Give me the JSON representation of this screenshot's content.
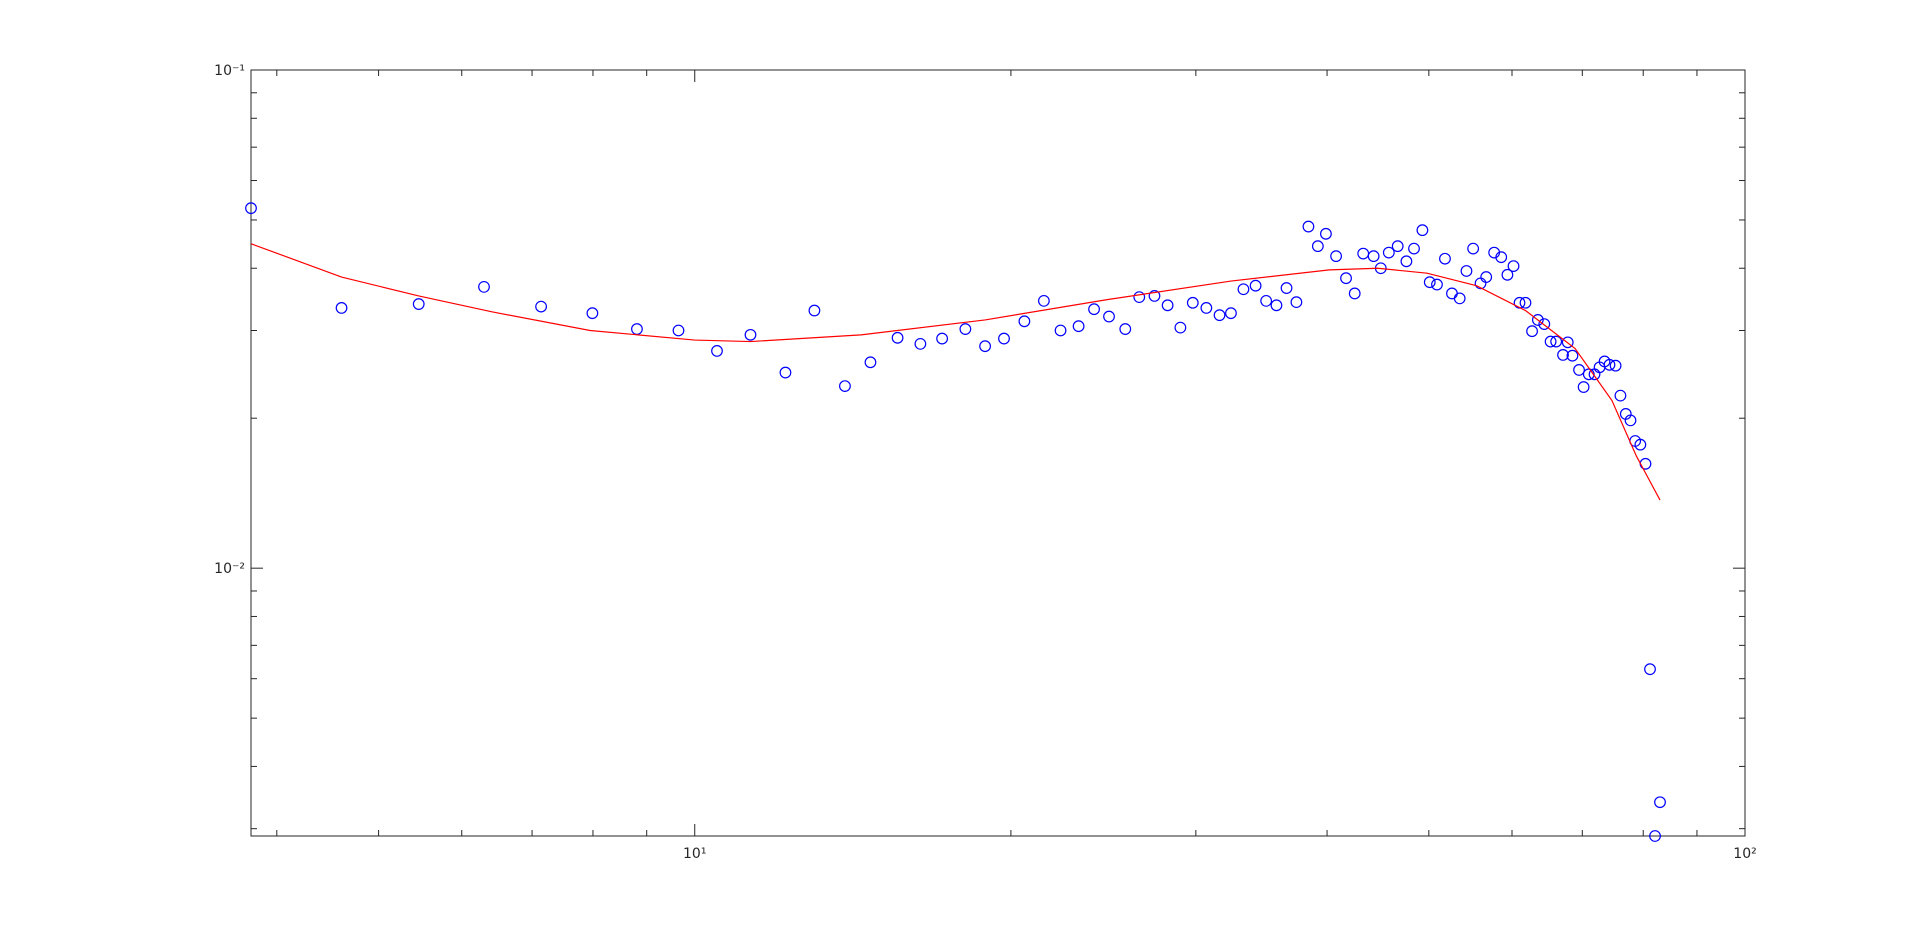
{
  "chart_data": {
    "type": "scatter",
    "xscale": "log",
    "yscale": "log",
    "xlim": [
      3.78,
      100
    ],
    "ylim": [
      0.0029,
      0.1
    ],
    "xticks": [
      {
        "value": 10,
        "label": "10¹"
      },
      {
        "value": 100,
        "label": "10²"
      }
    ],
    "yticks": [
      {
        "value": 0.01,
        "label": "10⁻²"
      },
      {
        "value": 0.1,
        "label": "10⁻¹"
      }
    ],
    "xminorticks": [
      4,
      5,
      6,
      7,
      8,
      9,
      20,
      30,
      40,
      50,
      60,
      70,
      80,
      90
    ],
    "yminorticks": [
      0.003,
      0.004,
      0.005,
      0.006,
      0.007,
      0.008,
      0.009,
      0.02,
      0.03,
      0.04,
      0.05,
      0.06,
      0.07,
      0.08,
      0.09
    ],
    "series": [
      {
        "type": "scatter",
        "color": "#0000ff",
        "x": [
          3.78,
          4.61,
          5.46,
          6.3,
          7.14,
          7.99,
          8.81,
          9.65,
          10.5,
          11.3,
          12.2,
          13.0,
          13.9,
          14.7,
          15.6,
          16.4,
          17.2,
          18.1,
          18.9,
          19.7,
          20.6,
          21.5,
          22.3,
          23.2,
          24.0,
          24.8,
          25.7,
          26.5,
          27.4,
          28.2,
          29.0,
          29.8,
          30.7,
          31.6,
          32.4,
          33.3,
          34.2,
          35.0,
          35.8,
          36.6,
          37.4,
          38.4,
          39.2,
          39.9,
          40.8,
          41.7,
          42.5,
          43.3,
          44.3,
          45.0,
          45.8,
          46.7,
          47.6,
          48.4,
          49.3,
          50.1,
          50.9,
          51.8,
          52.6,
          53.5,
          54.3,
          55.1,
          56.0,
          56.7,
          57.7,
          58.6,
          59.4,
          60.2,
          61.0,
          61.8,
          62.7,
          63.5,
          64.4,
          65.3,
          66.1,
          67.1,
          67.8,
          68.5,
          69.5,
          70.2,
          71.0,
          71.9,
          72.7,
          73.5,
          74.3,
          75.3,
          76.1,
          77.0,
          77.8,
          78.6,
          79.5,
          80.4,
          81.2,
          82.1,
          83.0
        ],
        "values": [
          0.0528,
          0.0333,
          0.0339,
          0.0367,
          0.0335,
          0.0325,
          0.0302,
          0.03,
          0.0273,
          0.0294,
          0.0247,
          0.0329,
          0.0232,
          0.0259,
          0.029,
          0.0282,
          0.0289,
          0.0302,
          0.0279,
          0.0289,
          0.0313,
          0.0344,
          0.03,
          0.0306,
          0.0331,
          0.032,
          0.0302,
          0.035,
          0.0352,
          0.0337,
          0.0304,
          0.0341,
          0.0333,
          0.0322,
          0.0325,
          0.0363,
          0.0369,
          0.0344,
          0.0337,
          0.0365,
          0.0342,
          0.0485,
          0.0443,
          0.0469,
          0.0423,
          0.0382,
          0.0356,
          0.0428,
          0.0423,
          0.04,
          0.043,
          0.0443,
          0.0413,
          0.0438,
          0.0477,
          0.0375,
          0.0371,
          0.0418,
          0.0356,
          0.0348,
          0.0395,
          0.0438,
          0.0373,
          0.0384,
          0.043,
          0.0421,
          0.0388,
          0.0404,
          0.0341,
          0.0341,
          0.0299,
          0.0315,
          0.0309,
          0.0285,
          0.0285,
          0.0268,
          0.0284,
          0.0267,
          0.025,
          0.0231,
          0.0245,
          0.0245,
          0.0253,
          0.026,
          0.0256,
          0.0255,
          0.0222,
          0.0204,
          0.0198,
          0.018,
          0.0177,
          0.0162,
          0.00627,
          0.0029,
          0.00339
        ]
      },
      {
        "type": "line",
        "color": "#ff0000",
        "x": [
          3.78,
          4.61,
          5.46,
          6.41,
          7.95,
          10,
          11.3,
          14.4,
          18.9,
          24.7,
          32.4,
          40.2,
          44.7,
          49.8,
          55.5,
          61.8,
          68.9,
          74.7,
          78.8,
          83.0
        ],
        "values": [
          0.0448,
          0.0384,
          0.0352,
          0.0327,
          0.03,
          0.0287,
          0.0285,
          0.0294,
          0.0315,
          0.0346,
          0.0377,
          0.0397,
          0.04,
          0.0391,
          0.0369,
          0.0329,
          0.0276,
          0.0217,
          0.0168,
          0.0137
        ]
      }
    ]
  }
}
